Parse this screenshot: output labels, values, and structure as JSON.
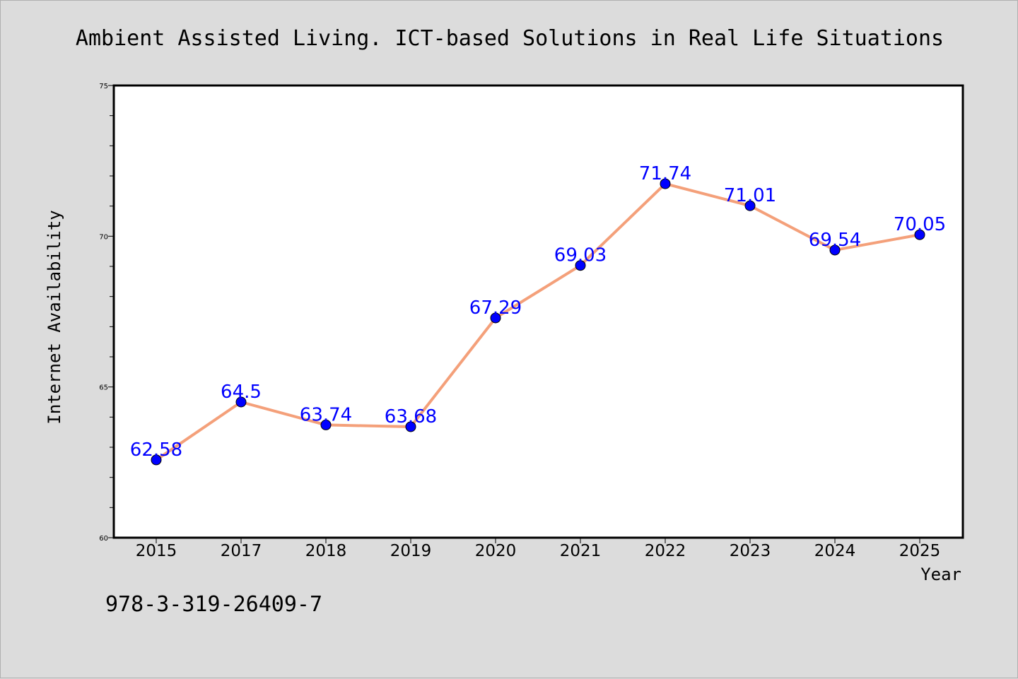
{
  "chart_data": {
    "type": "line",
    "title": "Ambient Assisted Living. ICT-based Solutions in Real Life Situations",
    "xlabel": "Year",
    "ylabel": "Internet Availability",
    "categories": [
      "2015",
      "2017",
      "2018",
      "2019",
      "2020",
      "2021",
      "2022",
      "2023",
      "2024",
      "2025"
    ],
    "series": [
      {
        "values": [
          62.58,
          64.5,
          63.74,
          63.68,
          67.29,
          69.03,
          71.74,
          71.01,
          69.54,
          70.05
        ],
        "labels": [
          "62.58",
          "64.5",
          "63.74",
          "63.68",
          "67.29",
          "69.03",
          "71.74",
          "71.01",
          "69.54",
          "70.05"
        ]
      }
    ],
    "ylim": [
      60,
      75
    ],
    "yticks": [
      60,
      65,
      70,
      75
    ],
    "grid": false,
    "legend": "none",
    "colors": {
      "line": "#f4a07a",
      "marker": "#0000ff",
      "data_label": "#0000ff",
      "background": "#dcdcdc",
      "plot_area": "#ffffff"
    }
  },
  "footer": {
    "isbn": "978-3-319-26409-7"
  }
}
